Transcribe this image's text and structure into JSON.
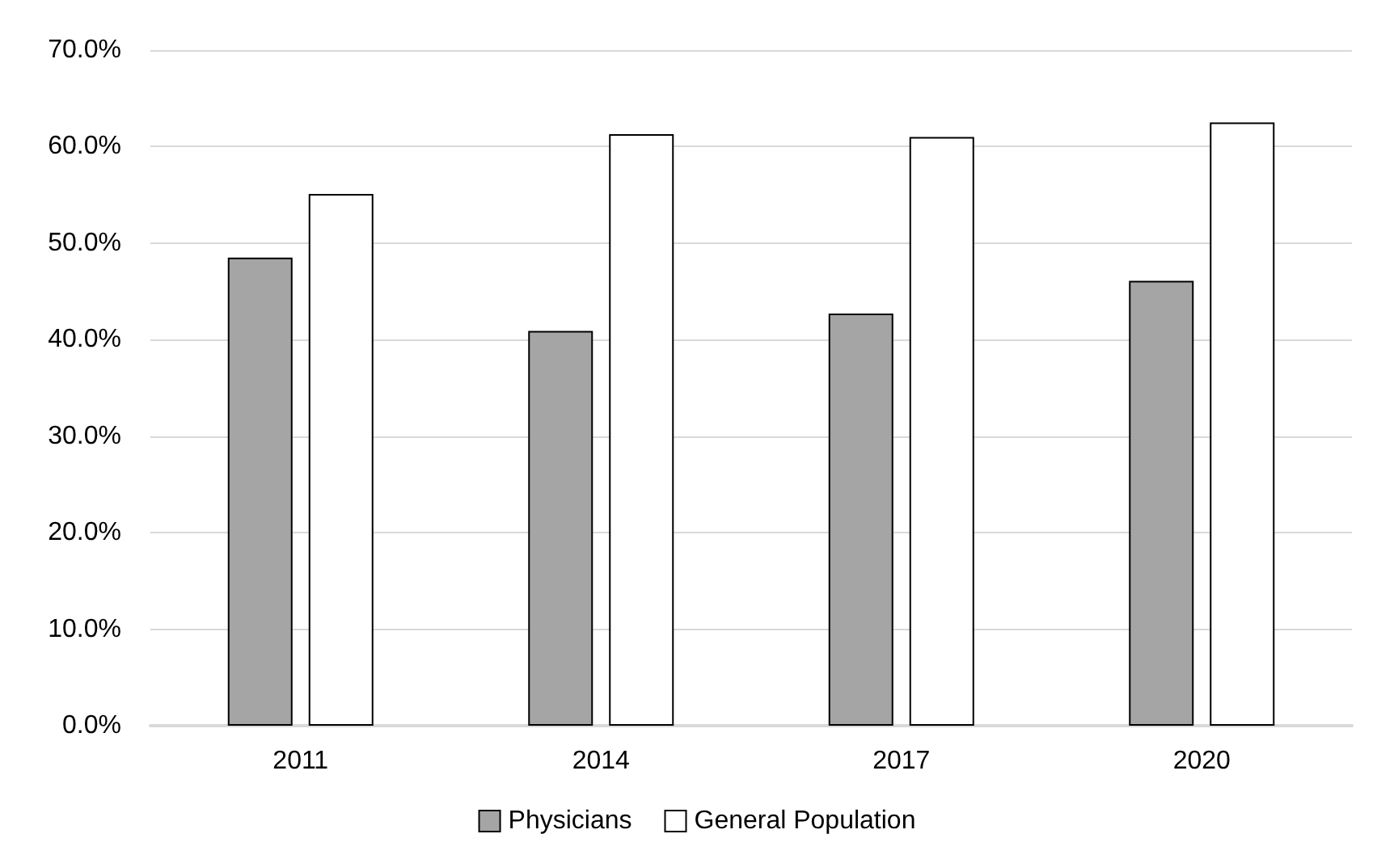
{
  "chart_data": {
    "type": "bar",
    "categories": [
      "2011",
      "2014",
      "2017",
      "2020"
    ],
    "series": [
      {
        "name": "Physicians",
        "color": "#a5a5a5",
        "values": [
          48.5,
          40.9,
          42.7,
          46.1
        ]
      },
      {
        "name": "General Population",
        "color": "#ffffff",
        "values": [
          55.1,
          61.3,
          61.0,
          62.5
        ]
      }
    ],
    "ylim": [
      0,
      70
    ],
    "yticks": [
      {
        "value": 0,
        "label": "0.0%"
      },
      {
        "value": 10,
        "label": "10.0%"
      },
      {
        "value": 20,
        "label": "20.0%"
      },
      {
        "value": 30,
        "label": "30.0%"
      },
      {
        "value": 40,
        "label": "40.0%"
      },
      {
        "value": 50,
        "label": "50.0%"
      },
      {
        "value": 60,
        "label": "60.0%"
      },
      {
        "value": 70,
        "label": "70.0%"
      }
    ],
    "grid": "y",
    "legend": "bottom"
  }
}
